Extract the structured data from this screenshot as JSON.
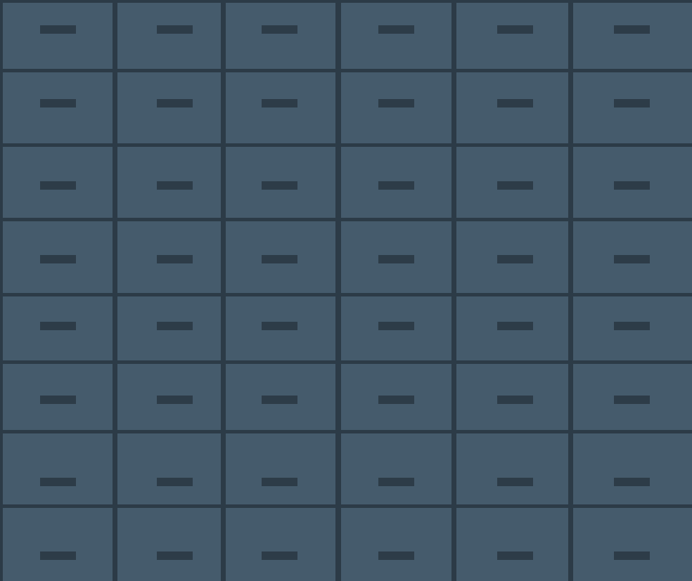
{
  "cabinet": {
    "rows": 8,
    "columns": 6,
    "drawer_label": "",
    "colors": {
      "frame": "#2c3b47",
      "drawer_face": "#455b6c",
      "handle": "#2d3c48"
    }
  }
}
